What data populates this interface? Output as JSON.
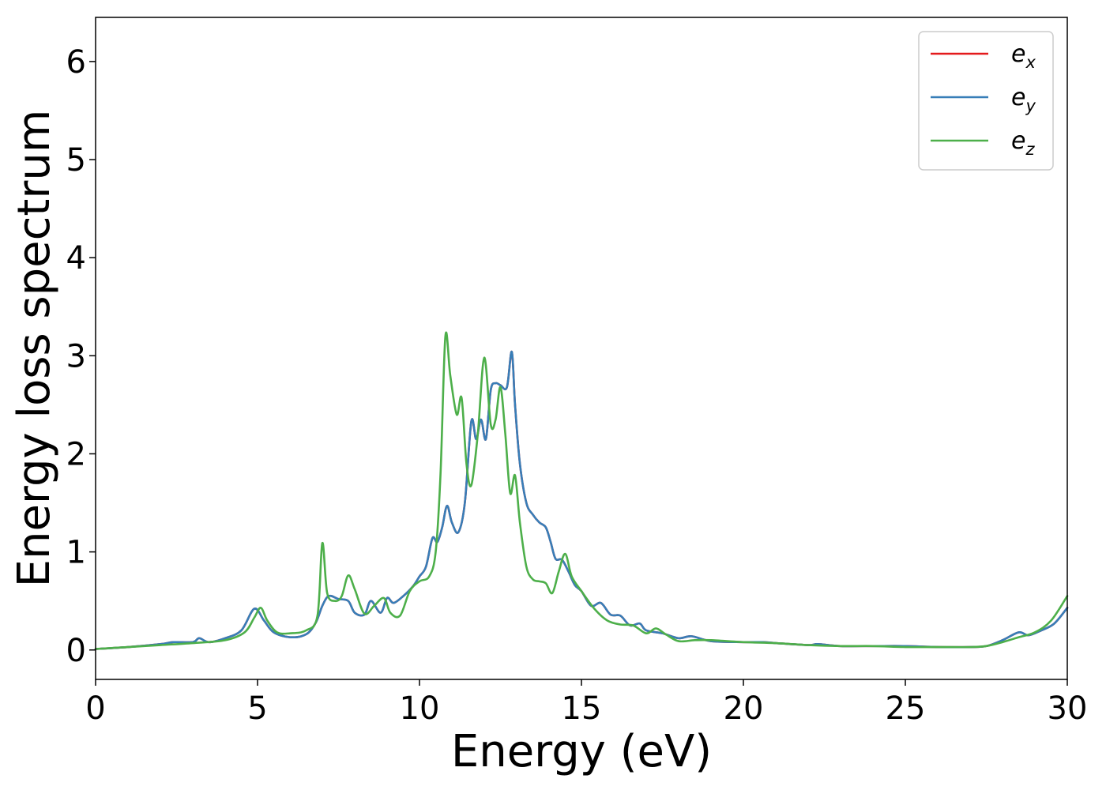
{
  "chart_data": {
    "type": "line",
    "xlabel": "Energy (eV)",
    "ylabel": "Energy loss spectrum",
    "xlim": [
      0,
      30
    ],
    "ylim": [
      -0.3,
      6.45
    ],
    "xticks": [
      0,
      5,
      10,
      15,
      20,
      25,
      30
    ],
    "yticks": [
      0,
      1,
      2,
      3,
      4,
      5,
      6
    ],
    "grid": false,
    "legend_position": "top-right",
    "series": [
      {
        "name": "e_x",
        "legend_base": "e",
        "legend_sub": "x",
        "color": "#e41a1c",
        "x": [
          0,
          1,
          2,
          2.4,
          3,
          3.2,
          3.5,
          4,
          4.5,
          4.9,
          5.2,
          5.5,
          6,
          6.5,
          6.8,
          7,
          7.2,
          7.5,
          7.8,
          8,
          8.3,
          8.5,
          8.8,
          9,
          9.2,
          9.5,
          9.8,
          10,
          10.2,
          10.4,
          10.55,
          10.7,
          10.85,
          11,
          11.2,
          11.4,
          11.6,
          11.75,
          11.9,
          12.05,
          12.2,
          12.35,
          12.5,
          12.7,
          12.85,
          12.95,
          13.1,
          13.3,
          13.5,
          13.7,
          13.9,
          14.05,
          14.2,
          14.4,
          14.6,
          14.8,
          15,
          15.3,
          15.6,
          15.9,
          16.2,
          16.5,
          16.8,
          17,
          17.5,
          18,
          18.4,
          19,
          20,
          20.6,
          21,
          22,
          22.3,
          23,
          24,
          25,
          26,
          27,
          27.5,
          28,
          28.5,
          28.8,
          29.2,
          29.6,
          30
        ],
        "values": [
          0.01,
          0.03,
          0.06,
          0.08,
          0.08,
          0.12,
          0.08,
          0.12,
          0.2,
          0.42,
          0.3,
          0.18,
          0.13,
          0.16,
          0.28,
          0.45,
          0.55,
          0.52,
          0.5,
          0.38,
          0.36,
          0.5,
          0.38,
          0.53,
          0.48,
          0.55,
          0.65,
          0.75,
          0.85,
          1.14,
          1.1,
          1.25,
          1.47,
          1.3,
          1.2,
          1.5,
          2.33,
          2.15,
          2.35,
          2.15,
          2.65,
          2.72,
          2.7,
          2.68,
          3.04,
          2.5,
          1.9,
          1.5,
          1.38,
          1.3,
          1.25,
          1.1,
          0.93,
          0.92,
          0.8,
          0.66,
          0.6,
          0.45,
          0.48,
          0.36,
          0.35,
          0.25,
          0.27,
          0.2,
          0.17,
          0.12,
          0.14,
          0.09,
          0.08,
          0.08,
          0.07,
          0.05,
          0.06,
          0.04,
          0.04,
          0.04,
          0.03,
          0.03,
          0.04,
          0.1,
          0.18,
          0.15,
          0.2,
          0.27,
          0.43
        ]
      },
      {
        "name": "e_y",
        "legend_base": "e",
        "legend_sub": "y",
        "color": "#377eb8",
        "x": [
          0,
          1,
          2,
          2.4,
          3,
          3.2,
          3.5,
          4,
          4.5,
          4.9,
          5.2,
          5.5,
          6,
          6.5,
          6.8,
          7,
          7.2,
          7.5,
          7.8,
          8,
          8.3,
          8.5,
          8.8,
          9,
          9.2,
          9.5,
          9.8,
          10,
          10.2,
          10.4,
          10.55,
          10.7,
          10.85,
          11,
          11.2,
          11.4,
          11.6,
          11.75,
          11.9,
          12.05,
          12.2,
          12.35,
          12.5,
          12.7,
          12.85,
          12.95,
          13.1,
          13.3,
          13.5,
          13.7,
          13.9,
          14.05,
          14.2,
          14.4,
          14.6,
          14.8,
          15,
          15.3,
          15.6,
          15.9,
          16.2,
          16.5,
          16.8,
          17,
          17.5,
          18,
          18.4,
          19,
          20,
          20.6,
          21,
          22,
          22.3,
          23,
          24,
          25,
          26,
          27,
          27.5,
          28,
          28.5,
          28.8,
          29.2,
          29.6,
          30
        ],
        "values": [
          0.01,
          0.03,
          0.06,
          0.08,
          0.08,
          0.12,
          0.08,
          0.12,
          0.2,
          0.42,
          0.3,
          0.18,
          0.13,
          0.16,
          0.28,
          0.45,
          0.55,
          0.52,
          0.5,
          0.38,
          0.36,
          0.5,
          0.38,
          0.53,
          0.48,
          0.55,
          0.65,
          0.75,
          0.85,
          1.14,
          1.1,
          1.25,
          1.47,
          1.3,
          1.2,
          1.5,
          2.33,
          2.15,
          2.35,
          2.15,
          2.65,
          2.72,
          2.7,
          2.68,
          3.04,
          2.5,
          1.9,
          1.5,
          1.38,
          1.3,
          1.25,
          1.1,
          0.93,
          0.92,
          0.8,
          0.66,
          0.6,
          0.45,
          0.48,
          0.36,
          0.35,
          0.25,
          0.27,
          0.2,
          0.17,
          0.12,
          0.14,
          0.09,
          0.08,
          0.08,
          0.07,
          0.05,
          0.06,
          0.04,
          0.04,
          0.04,
          0.03,
          0.03,
          0.04,
          0.1,
          0.18,
          0.15,
          0.2,
          0.27,
          0.43
        ]
      },
      {
        "name": "e_z",
        "legend_base": "e",
        "legend_sub": "z",
        "color": "#4daf4a",
        "x": [
          0,
          1,
          2,
          3,
          4,
          4.6,
          4.9,
          5.1,
          5.3,
          5.6,
          6,
          6.5,
          6.85,
          7,
          7.15,
          7.4,
          7.6,
          7.8,
          8,
          8.3,
          8.6,
          8.9,
          9.1,
          9.4,
          9.7,
          10,
          10.3,
          10.5,
          10.65,
          10.8,
          10.95,
          11.15,
          11.3,
          11.45,
          11.6,
          11.8,
          12,
          12.2,
          12.35,
          12.5,
          12.65,
          12.8,
          12.95,
          13.1,
          13.3,
          13.5,
          13.7,
          13.9,
          14.1,
          14.3,
          14.5,
          14.7,
          15,
          15.4,
          15.8,
          16.2,
          16.6,
          17,
          17.3,
          17.6,
          18,
          18.5,
          19,
          20,
          21,
          22,
          23,
          24,
          25,
          26,
          27,
          27.5,
          28,
          28.5,
          29,
          29.5,
          30
        ],
        "values": [
          0.01,
          0.03,
          0.05,
          0.07,
          0.1,
          0.18,
          0.33,
          0.43,
          0.3,
          0.18,
          0.17,
          0.2,
          0.35,
          1.09,
          0.58,
          0.5,
          0.55,
          0.76,
          0.62,
          0.37,
          0.45,
          0.53,
          0.38,
          0.35,
          0.6,
          0.7,
          0.75,
          1.0,
          1.8,
          3.2,
          2.8,
          2.4,
          2.57,
          1.9,
          1.68,
          2.2,
          2.98,
          2.3,
          2.35,
          2.68,
          2.2,
          1.6,
          1.78,
          1.3,
          0.85,
          0.72,
          0.7,
          0.68,
          0.58,
          0.8,
          0.98,
          0.75,
          0.6,
          0.42,
          0.3,
          0.26,
          0.25,
          0.17,
          0.22,
          0.16,
          0.09,
          0.1,
          0.1,
          0.08,
          0.07,
          0.05,
          0.04,
          0.04,
          0.03,
          0.03,
          0.03,
          0.04,
          0.08,
          0.13,
          0.18,
          0.3,
          0.55
        ]
      }
    ]
  }
}
